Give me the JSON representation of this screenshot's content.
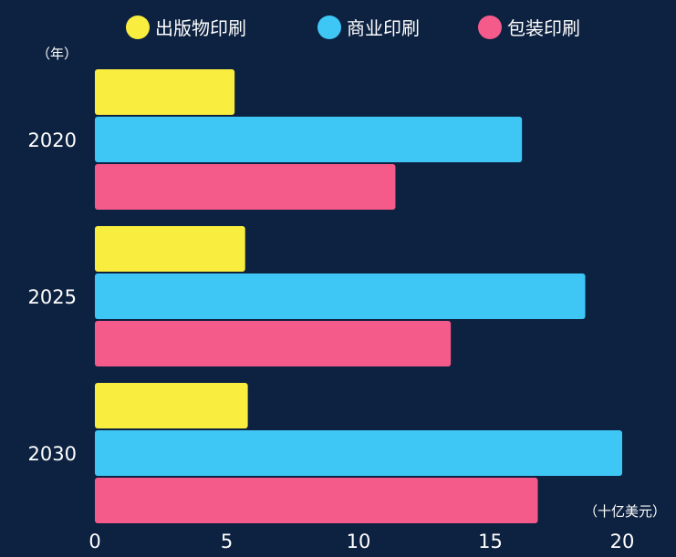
{
  "chart_data": {
    "type": "bar",
    "orientation": "horizontal",
    "categories": [
      "2020",
      "2025",
      "2030"
    ],
    "series": [
      {
        "name": "出版物印刷",
        "color": "#f9ee3f",
        "values": [
          5.3,
          5.7,
          5.8
        ]
      },
      {
        "name": "商业印刷",
        "color": "#3ec6f5",
        "values": [
          16.2,
          18.6,
          20.0
        ]
      },
      {
        "name": "包装印刷",
        "color": "#f45b8b",
        "values": [
          11.4,
          13.5,
          16.8
        ]
      }
    ],
    "x_ticks": [
      "0",
      "5",
      "10",
      "15",
      "20"
    ],
    "xlim": [
      0,
      20
    ],
    "y_unit": "（年）",
    "x_unit": "（十亿美元）",
    "legend_position": "top",
    "grid": false
  }
}
